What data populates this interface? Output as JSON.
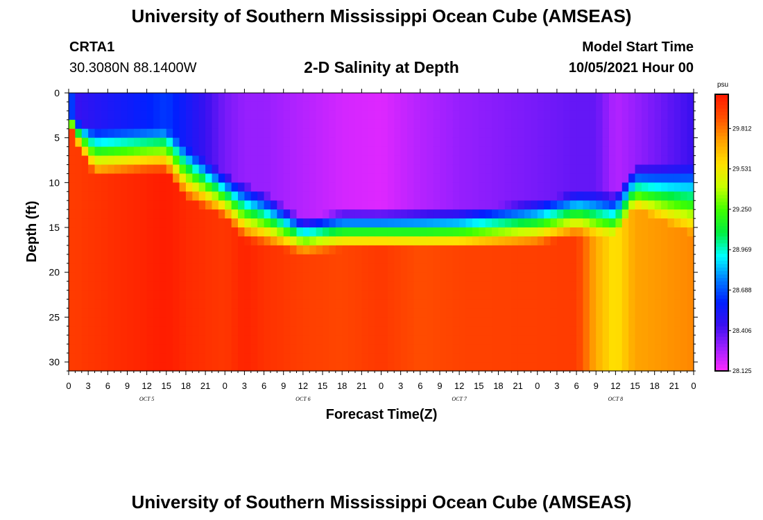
{
  "header": {
    "title": "University of Southern Mississippi Ocean Cube (AMSEAS)",
    "station": "CRTA1",
    "coords": "30.3080N  88.1400W",
    "subtitle": "2-D Salinity at Depth",
    "start_label": "Model Start Time",
    "start_value": "10/05/2021 Hour 00"
  },
  "footer": {
    "title": "University of Southern Mississippi Ocean Cube (AMSEAS)"
  },
  "colors": {
    "palette": [
      "#ff2bff",
      "#a020ff",
      "#3a10f0",
      "#0020ff",
      "#0080ff",
      "#00ffff",
      "#00ee40",
      "#40ff00",
      "#c8ff00",
      "#ffe000",
      "#ffa000",
      "#ff5000",
      "#ff1800"
    ]
  },
  "chart_data": {
    "type": "heatmap",
    "title": "2-D Salinity at Depth",
    "xlabel": "Forecast Time(Z)",
    "ylabel": "Depth (ft)",
    "x_tick_labels": [
      "0",
      "3",
      "6",
      "9",
      "12",
      "15",
      "18",
      "21",
      "0",
      "3",
      "6",
      "9",
      "12",
      "15",
      "18",
      "21",
      "0",
      "3",
      "6",
      "9",
      "12",
      "15",
      "18",
      "21",
      "0",
      "3",
      "6",
      "9",
      "12",
      "15",
      "18",
      "21",
      "0"
    ],
    "day_labels": [
      "OCT 5",
      "OCT 6",
      "OCT 7",
      "OCT 8"
    ],
    "xlim_hours": [
      0,
      96
    ],
    "ylim_ft": [
      0,
      31
    ],
    "y_ticks": [
      0,
      5,
      10,
      15,
      20,
      25,
      30
    ],
    "colorbar": {
      "unit": "psu",
      "min": 28.125,
      "max": 30.05,
      "tick_values": [
        29.812,
        29.531,
        29.25,
        28.969,
        28.688,
        28.406,
        28.125
      ],
      "tick_labels": [
        "29.812",
        "29.531",
        "29.250",
        "28.969",
        "28.688",
        "28.406",
        "28.125"
      ]
    },
    "columns": [
      {
        "h": 0,
        "fresh_depth": 2,
        "mix": 1.5,
        "top": 28.85,
        "bottom": 29.95
      },
      {
        "h": 1,
        "fresh_depth": 3,
        "mix": 2.5,
        "top": 28.45,
        "bottom": 29.95
      },
      {
        "h": 4,
        "fresh_depth": 4,
        "mix": 5.5,
        "top": 28.5,
        "bottom": 29.97
      },
      {
        "h": 12,
        "fresh_depth": 4,
        "mix": 5.0,
        "top": 28.6,
        "bottom": 30.02
      },
      {
        "h": 15,
        "fresh_depth": 4,
        "mix": 5.0,
        "top": 28.65,
        "bottom": 30.04
      },
      {
        "h": 18,
        "fresh_depth": 6,
        "mix": 6.0,
        "top": 28.55,
        "bottom": 30.0
      },
      {
        "h": 24,
        "fresh_depth": 9,
        "mix": 5.0,
        "top": 28.35,
        "bottom": 29.96
      },
      {
        "h": 27,
        "fresh_depth": 10,
        "mix": 6.5,
        "top": 28.3,
        "bottom": 30.02
      },
      {
        "h": 30,
        "fresh_depth": 11,
        "mix": 6.0,
        "top": 28.3,
        "bottom": 29.98
      },
      {
        "h": 36,
        "fresh_depth": 14,
        "mix": 4.0,
        "top": 28.25,
        "bottom": 29.94
      },
      {
        "h": 42,
        "fresh_depth": 13,
        "mix": 4.5,
        "top": 28.2,
        "bottom": 29.92
      },
      {
        "h": 48,
        "fresh_depth": 13,
        "mix": 4.5,
        "top": 28.18,
        "bottom": 29.96
      },
      {
        "h": 54,
        "fresh_depth": 13,
        "mix": 4.5,
        "top": 28.25,
        "bottom": 29.9
      },
      {
        "h": 60,
        "fresh_depth": 13,
        "mix": 4.5,
        "top": 28.3,
        "bottom": 29.93
      },
      {
        "h": 72,
        "fresh_depth": 12,
        "mix": 5.0,
        "top": 28.35,
        "bottom": 29.94
      },
      {
        "h": 78,
        "fresh_depth": 11,
        "mix": 5.0,
        "top": 28.38,
        "bottom": 29.95
      },
      {
        "h": 81,
        "fresh_depth": 11,
        "mix": 5.0,
        "top": 28.38,
        "bottom": 29.7
      },
      {
        "h": 84,
        "fresh_depth": 11,
        "mix": 5.0,
        "top": 28.25,
        "bottom": 29.55
      },
      {
        "h": 87,
        "fresh_depth": 8,
        "mix": 5.0,
        "top": 28.3,
        "bottom": 29.72
      },
      {
        "h": 96,
        "fresh_depth": 8,
        "mix": 8.0,
        "top": 28.45,
        "bottom": 29.78
      }
    ]
  }
}
